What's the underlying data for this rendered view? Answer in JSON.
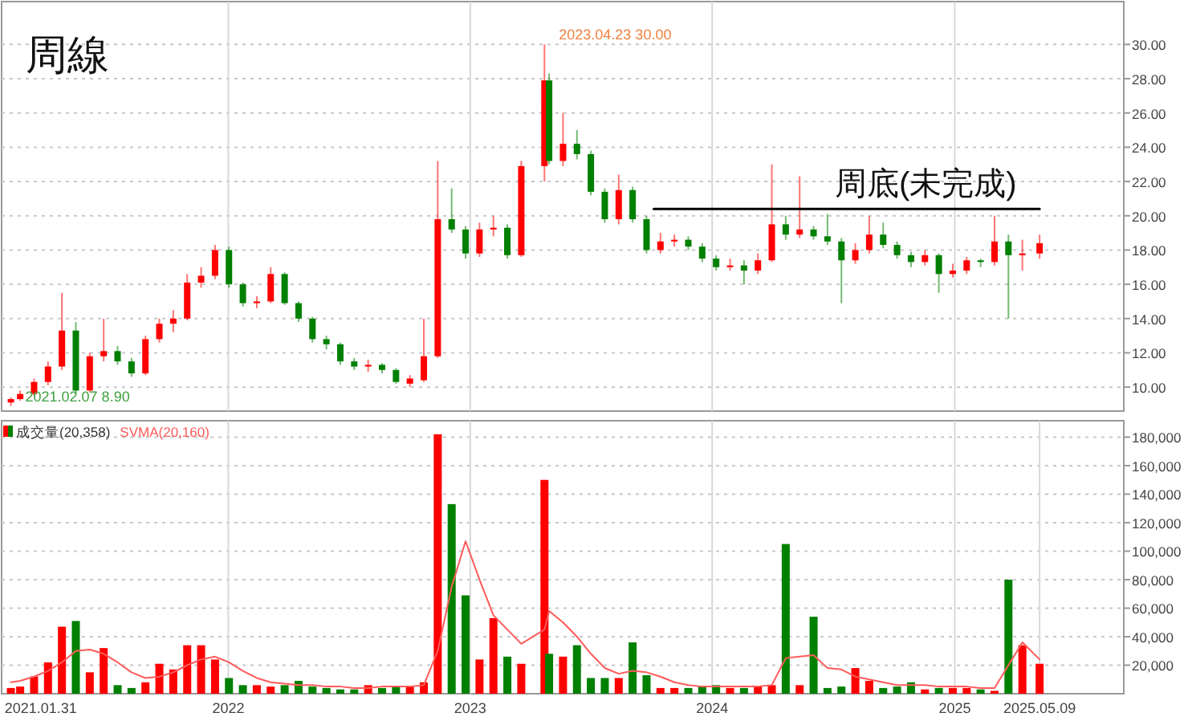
{
  "chart_data": [
    {
      "type": "candlestick",
      "title": "周線",
      "x": [
        "2021-02-07",
        "2021-02-21",
        "2021-03-14",
        "2021-04-04",
        "2021-04-25",
        "2021-05-16",
        "2021-06-06",
        "2021-06-27",
        "2021-07-18",
        "2021-08-08",
        "2021-08-29",
        "2021-09-19",
        "2021-10-10",
        "2021-10-31",
        "2021-11-21",
        "2021-12-12",
        "2022-01-02",
        "2022-01-23",
        "2022-02-13",
        "2022-03-06",
        "2022-03-27",
        "2022-04-17",
        "2022-05-08",
        "2022-05-29",
        "2022-06-19",
        "2022-07-10",
        "2022-07-31",
        "2022-08-21",
        "2022-09-11",
        "2022-10-02",
        "2022-10-23",
        "2022-11-13",
        "2022-12-04",
        "2022-12-25",
        "2023-01-15",
        "2023-02-05",
        "2023-02-26",
        "2023-03-19",
        "2023-04-23",
        "2023-04-30",
        "2023-05-21",
        "2023-06-11",
        "2023-07-02",
        "2023-07-23",
        "2023-08-13",
        "2023-09-03",
        "2023-09-24",
        "2023-10-15",
        "2023-11-05",
        "2023-11-26",
        "2023-12-17",
        "2024-01-07",
        "2024-01-28",
        "2024-02-18",
        "2024-03-10",
        "2024-03-31",
        "2024-04-21",
        "2024-05-12",
        "2024-06-02",
        "2024-06-23",
        "2024-07-14",
        "2024-08-04",
        "2024-08-25",
        "2024-09-15",
        "2024-10-06",
        "2024-10-27",
        "2024-11-17",
        "2024-12-08",
        "2024-12-29",
        "2025-01-19",
        "2025-02-09",
        "2025-03-02",
        "2025-03-23",
        "2025-04-13",
        "2025-05-09"
      ],
      "ohlc": [
        [
          9.1,
          9.4,
          8.9,
          9.3
        ],
        [
          9.3,
          9.8,
          9.2,
          9.6
        ],
        [
          9.6,
          10.5,
          9.5,
          10.3
        ],
        [
          10.3,
          11.5,
          10.1,
          11.2
        ],
        [
          11.2,
          15.5,
          11.0,
          13.3
        ],
        [
          13.3,
          13.8,
          9.6,
          9.8
        ],
        [
          9.8,
          12.0,
          9.7,
          11.8
        ],
        [
          11.8,
          14.0,
          11.5,
          12.1
        ],
        [
          12.1,
          12.4,
          11.3,
          11.5
        ],
        [
          11.5,
          11.7,
          10.6,
          10.8
        ],
        [
          10.8,
          13.0,
          10.7,
          12.8
        ],
        [
          12.8,
          14.0,
          12.6,
          13.7
        ],
        [
          13.7,
          14.5,
          13.2,
          14.0
        ],
        [
          14.0,
          16.6,
          13.9,
          16.1
        ],
        [
          16.1,
          17.0,
          15.8,
          16.5
        ],
        [
          16.5,
          18.3,
          16.3,
          18.0
        ],
        [
          18.0,
          18.2,
          15.8,
          16.0
        ],
        [
          16.0,
          16.1,
          14.7,
          14.9
        ],
        [
          14.9,
          15.3,
          14.6,
          15.0
        ],
        [
          15.0,
          17.0,
          14.9,
          16.6
        ],
        [
          16.6,
          16.7,
          14.8,
          14.9
        ],
        [
          14.9,
          15.0,
          13.8,
          14.0
        ],
        [
          14.0,
          14.1,
          12.6,
          12.8
        ],
        [
          12.8,
          13.0,
          12.2,
          12.5
        ],
        [
          12.5,
          12.6,
          11.3,
          11.5
        ],
        [
          11.5,
          11.7,
          11.0,
          11.2
        ],
        [
          11.2,
          11.6,
          10.9,
          11.3
        ],
        [
          11.3,
          11.4,
          10.8,
          11.0
        ],
        [
          11.0,
          11.1,
          10.2,
          10.3
        ],
        [
          10.2,
          10.7,
          10.0,
          10.5
        ],
        [
          10.4,
          14.0,
          10.3,
          11.8
        ],
        [
          11.8,
          23.2,
          11.7,
          19.8
        ],
        [
          19.8,
          21.6,
          19.0,
          19.2
        ],
        [
          19.2,
          19.4,
          17.5,
          17.8
        ],
        [
          17.8,
          19.6,
          17.6,
          19.2
        ],
        [
          19.2,
          20.0,
          18.8,
          19.3
        ],
        [
          19.3,
          19.5,
          17.5,
          17.7
        ],
        [
          17.7,
          23.2,
          17.6,
          22.9
        ],
        [
          22.9,
          30.0,
          22.0,
          27.9
        ],
        [
          27.9,
          28.3,
          23.0,
          23.2
        ],
        [
          23.2,
          26.0,
          22.9,
          24.2
        ],
        [
          24.2,
          25.0,
          23.3,
          23.6
        ],
        [
          23.6,
          23.8,
          21.2,
          21.4
        ],
        [
          21.4,
          21.6,
          19.6,
          19.8
        ],
        [
          19.8,
          22.4,
          19.5,
          21.5
        ],
        [
          21.5,
          21.7,
          19.6,
          19.8
        ],
        [
          19.8,
          20.0,
          17.8,
          18.0
        ],
        [
          18.0,
          19.0,
          17.8,
          18.5
        ],
        [
          18.5,
          18.9,
          18.2,
          18.6
        ],
        [
          18.6,
          18.8,
          18.0,
          18.2
        ],
        [
          18.2,
          18.4,
          17.3,
          17.5
        ],
        [
          17.5,
          17.7,
          16.8,
          17.0
        ],
        [
          17.0,
          17.5,
          16.8,
          17.1
        ],
        [
          17.1,
          17.4,
          16.0,
          16.8
        ],
        [
          16.8,
          17.8,
          16.6,
          17.4
        ],
        [
          17.4,
          23.0,
          17.3,
          19.5
        ],
        [
          19.5,
          20.0,
          18.6,
          18.9
        ],
        [
          18.9,
          22.3,
          18.7,
          19.2
        ],
        [
          19.2,
          19.4,
          18.6,
          18.8
        ],
        [
          18.8,
          20.1,
          18.3,
          18.5
        ],
        [
          18.5,
          18.7,
          14.9,
          17.4
        ],
        [
          17.4,
          18.4,
          17.2,
          18.0
        ],
        [
          18.0,
          20.0,
          17.8,
          18.9
        ],
        [
          18.9,
          19.6,
          18.1,
          18.3
        ],
        [
          18.3,
          18.5,
          17.5,
          17.7
        ],
        [
          17.7,
          17.9,
          17.0,
          17.3
        ],
        [
          17.3,
          18.0,
          17.1,
          17.7
        ],
        [
          17.7,
          17.8,
          15.5,
          16.6
        ],
        [
          16.6,
          17.2,
          16.4,
          16.8
        ],
        [
          16.8,
          17.6,
          16.6,
          17.4
        ],
        [
          17.4,
          17.5,
          17.0,
          17.3
        ],
        [
          17.3,
          20.0,
          17.1,
          18.5
        ],
        [
          18.5,
          18.9,
          14.0,
          17.7
        ],
        [
          17.7,
          18.6,
          16.8,
          17.8
        ],
        [
          17.8,
          18.9,
          17.5,
          18.4
        ]
      ],
      "series": [
        {
          "type": "line",
          "x": [
            "2023-10-05",
            "2025-05-09"
          ],
          "values": [
            20.4,
            20.4
          ],
          "color": "#000000"
        }
      ],
      "annotations": [
        {
          "text": "2023.04.23  30.00",
          "x": "2023-04-23",
          "y": 30
        },
        {
          "text": "2021.02.07  8.90",
          "x": "2021-02-07",
          "y": 8.9
        },
        "周底(未完成)"
      ],
      "xlim": [
        "2021-01-24",
        "2025-09-13"
      ],
      "xticks": [
        {
          "value": "2022-01-01",
          "label": null
        },
        {
          "value": "2023-01-01",
          "label": null
        },
        {
          "value": "2024-01-01",
          "label": null
        },
        {
          "value": "2025-01-01",
          "label": null
        }
      ],
      "ylim": [
        8.6,
        32.5
      ],
      "yticks": [
        {
          "value": 10,
          "label": "10.00"
        },
        {
          "value": 12,
          "label": "12.00"
        },
        {
          "value": 14,
          "label": "14.00"
        },
        {
          "value": 16,
          "label": "16.00"
        },
        {
          "value": 18,
          "label": "18.00"
        },
        {
          "value": 20,
          "label": "20.00"
        },
        {
          "value": 22,
          "label": "22.00"
        },
        {
          "value": 24,
          "label": "24.00"
        },
        {
          "value": 26,
          "label": "26.00"
        },
        {
          "value": 28,
          "label": "28.00"
        },
        {
          "value": 30,
          "label": "30.00"
        }
      ],
      "tick_labels": "y",
      "grid": true
    },
    {
      "type": "bar",
      "x": [
        "2021-02-07",
        "2021-02-21",
        "2021-03-14",
        "2021-04-04",
        "2021-04-25",
        "2021-05-16",
        "2021-06-06",
        "2021-06-27",
        "2021-07-18",
        "2021-08-08",
        "2021-08-29",
        "2021-09-19",
        "2021-10-10",
        "2021-10-31",
        "2021-11-21",
        "2021-12-12",
        "2022-01-02",
        "2022-01-23",
        "2022-02-13",
        "2022-03-06",
        "2022-03-27",
        "2022-04-17",
        "2022-05-08",
        "2022-05-29",
        "2022-06-19",
        "2022-07-10",
        "2022-07-31",
        "2022-08-21",
        "2022-09-11",
        "2022-10-02",
        "2022-10-23",
        "2022-11-13",
        "2022-12-04",
        "2022-12-25",
        "2023-01-15",
        "2023-02-05",
        "2023-02-26",
        "2023-03-19",
        "2023-04-23",
        "2023-04-30",
        "2023-05-21",
        "2023-06-11",
        "2023-07-02",
        "2023-07-23",
        "2023-08-13",
        "2023-09-03",
        "2023-09-24",
        "2023-10-15",
        "2023-11-05",
        "2023-11-26",
        "2023-12-17",
        "2024-01-07",
        "2024-01-28",
        "2024-02-18",
        "2024-03-10",
        "2024-03-31",
        "2024-04-21",
        "2024-05-12",
        "2024-06-02",
        "2024-06-23",
        "2024-07-14",
        "2024-08-04",
        "2024-08-25",
        "2024-09-15",
        "2024-10-06",
        "2024-10-27",
        "2024-11-17",
        "2024-12-08",
        "2024-12-29",
        "2025-01-19",
        "2025-02-09",
        "2025-03-02",
        "2025-03-23",
        "2025-04-13",
        "2025-05-09"
      ],
      "series": [
        {
          "name": "成交量(20,358)",
          "colors": [
            "#ff0000",
            "#ff0000",
            "#ff0000",
            "#ff0000",
            "#ff0000",
            "#008000",
            "#ff0000",
            "#ff0000",
            "#008000",
            "#008000",
            "#ff0000",
            "#ff0000",
            "#ff0000",
            "#ff0000",
            "#ff0000",
            "#ff0000",
            "#008000",
            "#008000",
            "#ff0000",
            "#ff0000",
            "#008000",
            "#008000",
            "#008000",
            "#008000",
            "#008000",
            "#008000",
            "#ff0000",
            "#008000",
            "#008000",
            "#ff0000",
            "#ff0000",
            "#ff0000",
            "#008000",
            "#008000",
            "#ff0000",
            "#ff0000",
            "#008000",
            "#ff0000",
            "#ff0000",
            "#008000",
            "#ff0000",
            "#008000",
            "#008000",
            "#008000",
            "#ff0000",
            "#008000",
            "#008000",
            "#ff0000",
            "#ff0000",
            "#008000",
            "#008000",
            "#008000",
            "#ff0000",
            "#008000",
            "#ff0000",
            "#ff0000",
            "#008000",
            "#ff0000",
            "#008000",
            "#008000",
            "#008000",
            "#ff0000",
            "#ff0000",
            "#008000",
            "#008000",
            "#008000",
            "#ff0000",
            "#008000",
            "#ff0000",
            "#ff0000",
            "#008000",
            "#ff0000",
            "#008000",
            "#ff0000",
            "#ff0000"
          ],
          "values": [
            4000,
            5000,
            12000,
            22000,
            47000,
            51000,
            15000,
            32000,
            6000,
            4000,
            8000,
            21000,
            17000,
            34000,
            34000,
            24000,
            11000,
            6000,
            6000,
            5000,
            6000,
            9000,
            5000,
            4000,
            3000,
            3000,
            6000,
            4000,
            5000,
            5000,
            8000,
            182000,
            133000,
            69000,
            24000,
            53000,
            26000,
            21000,
            150000,
            28000,
            26000,
            34000,
            11000,
            11000,
            11000,
            36000,
            13000,
            4000,
            4000,
            4000,
            5000,
            6000,
            4000,
            4000,
            5000,
            6000,
            105000,
            6000,
            54000,
            4000,
            5000,
            18000,
            9000,
            4000,
            5000,
            8000,
            3000,
            4000,
            4000,
            4000,
            3000,
            2000,
            80000,
            34000,
            21000
          ]
        },
        {
          "name": "SVMA(20,160)",
          "type": "line",
          "color": "#ff5a5a",
          "values": [
            8000,
            9000,
            12000,
            16000,
            22000,
            30000,
            31000,
            28000,
            22000,
            15000,
            11000,
            12000,
            15000,
            20000,
            24000,
            26000,
            22000,
            16000,
            11000,
            8000,
            7000,
            6000,
            6000,
            5000,
            5000,
            4000,
            4000,
            5000,
            5000,
            5000,
            6000,
            30000,
            75000,
            107000,
            80000,
            55000,
            45000,
            35000,
            45000,
            58000,
            50000,
            40000,
            28000,
            18000,
            14000,
            16000,
            15000,
            12000,
            8000,
            6000,
            5000,
            5000,
            5000,
            5000,
            5000,
            6000,
            25000,
            26000,
            27000,
            18000,
            17000,
            12000,
            10000,
            8000,
            6000,
            6000,
            6000,
            5000,
            5000,
            5000,
            4000,
            4000,
            20000,
            36000,
            24000
          ]
        }
      ],
      "xlim": [
        "2021-01-24",
        "2025-09-13"
      ],
      "xticks": [
        {
          "value": "2021-01-31",
          "label": "2021.01.31"
        },
        {
          "value": "2022-01-01",
          "label": "2022"
        },
        {
          "value": "2023-01-01",
          "label": "2023"
        },
        {
          "value": "2024-01-01",
          "label": "2024"
        },
        {
          "value": "2025-01-01",
          "label": "2025"
        },
        {
          "value": "2025-05-09",
          "label": "2025.05.09"
        }
      ],
      "ylim": [
        0,
        191500
      ],
      "yticks": [
        {
          "value": 20000,
          "label": "20,000"
        },
        {
          "value": 40000,
          "label": "40,000"
        },
        {
          "value": 60000,
          "label": "60,000"
        },
        {
          "value": 80000,
          "label": "80,000"
        },
        {
          "value": 100000,
          "label": "100,000"
        },
        {
          "value": 120000,
          "label": "120,000"
        },
        {
          "value": 140000,
          "label": "140,000"
        },
        {
          "value": 160000,
          "label": "160,000"
        },
        {
          "value": 180000,
          "label": "180,000"
        }
      ],
      "grid": true,
      "legend": "top left"
    }
  ]
}
